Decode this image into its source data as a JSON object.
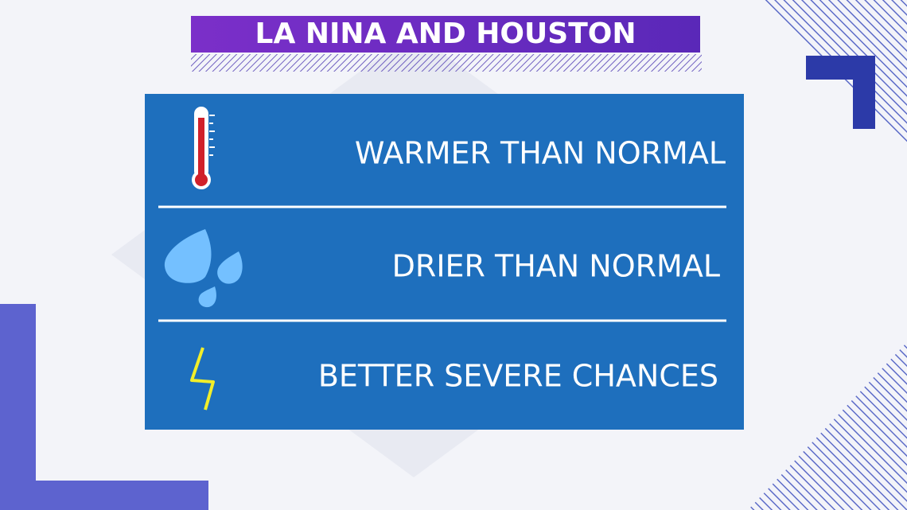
{
  "header": {
    "title": "LA NINA AND HOUSTON"
  },
  "items": [
    {
      "label": "WARMER THAN NORMAL"
    },
    {
      "label": "DRIER THAN NORMAL"
    },
    {
      "label": "BETTER SEVERE CHANCES"
    }
  ]
}
